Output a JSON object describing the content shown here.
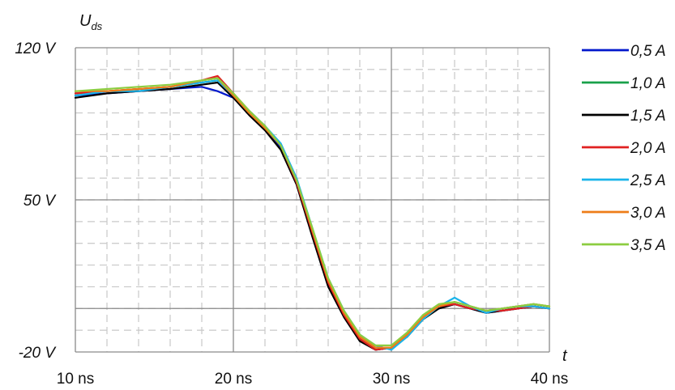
{
  "chart_data": {
    "type": "line",
    "title": "",
    "ylabel": "U",
    "ylabel_sub": "ds",
    "xlabel": "t",
    "xlim": [
      10,
      40
    ],
    "ylim": [
      -20,
      120
    ],
    "x_ticks": [
      {
        "value": 10,
        "label": "10 ns"
      },
      {
        "value": 20,
        "label": "20 ns"
      },
      {
        "value": 30,
        "label": "30 ns"
      },
      {
        "value": 40,
        "label": "40 ns"
      }
    ],
    "y_ticks": [
      {
        "value": 120,
        "label": "120 V"
      },
      {
        "value": 50,
        "label": "50 V"
      },
      {
        "value": -20,
        "label": "-20 V"
      }
    ],
    "grid": true,
    "legend_position": "right",
    "x": [
      10,
      12,
      14,
      16,
      18,
      19,
      20,
      21,
      22,
      23,
      24,
      25,
      26,
      27,
      28,
      29,
      30,
      31,
      32,
      33,
      34,
      35,
      36,
      37,
      38,
      39,
      40
    ],
    "series": [
      {
        "name": "0,5 A",
        "color": "#0018cc",
        "values": [
          98,
          99,
          100,
          101,
          102,
          100,
          97,
          90,
          83,
          74,
          58,
          35,
          12,
          -3,
          -14,
          -19,
          -18,
          -13,
          -4,
          0,
          2,
          0,
          -2,
          -1,
          0,
          1,
          0
        ]
      },
      {
        "name": "1,0 A",
        "color": "#19a04a",
        "values": [
          99,
          100,
          101,
          102,
          104,
          105,
          98,
          91,
          84,
          75,
          59,
          36,
          13,
          -2,
          -13,
          -18,
          -18,
          -12,
          -4,
          1,
          3,
          1,
          -1,
          0,
          1,
          2,
          1
        ]
      },
      {
        "name": "1,5 A",
        "color": "#000000",
        "values": [
          97,
          99,
          100,
          101,
          103,
          104,
          97,
          89,
          82,
          73,
          57,
          33,
          10,
          -4,
          -15,
          -19,
          -18,
          -13,
          -5,
          0,
          2,
          0,
          -2,
          -1,
          0,
          1,
          0
        ]
      },
      {
        "name": "2,0 A",
        "color": "#e02020",
        "values": [
          99,
          100,
          101,
          102,
          105,
          107,
          99,
          91,
          84,
          75,
          58,
          35,
          12,
          -3,
          -14,
          -19,
          -18,
          -12,
          -4,
          1,
          2,
          0,
          -1,
          -1,
          0,
          1,
          0
        ]
      },
      {
        "name": "2,5 A",
        "color": "#1ab4ea",
        "values": [
          98,
          100,
          100,
          102,
          104,
          105,
          98,
          91,
          84,
          76,
          60,
          37,
          14,
          -1,
          -12,
          -17,
          -19,
          -13,
          -5,
          1,
          5,
          1,
          -2,
          0,
          1,
          1,
          0
        ]
      },
      {
        "name": "3,0 A",
        "color": "#ee7d18",
        "values": [
          100,
          100,
          101,
          102,
          105,
          106,
          98,
          90,
          83,
          75,
          59,
          36,
          13,
          -2,
          -13,
          -18,
          -18,
          -12,
          -4,
          1,
          3,
          1,
          -1,
          0,
          1,
          2,
          1
        ]
      },
      {
        "name": "3,5 A",
        "color": "#8ccd40",
        "values": [
          100,
          101,
          102,
          103,
          105,
          106,
          99,
          91,
          84,
          75,
          59,
          37,
          14,
          -1,
          -12,
          -17,
          -17,
          -11,
          -3,
          2,
          3,
          1,
          -1,
          0,
          1,
          2,
          1
        ]
      }
    ]
  }
}
